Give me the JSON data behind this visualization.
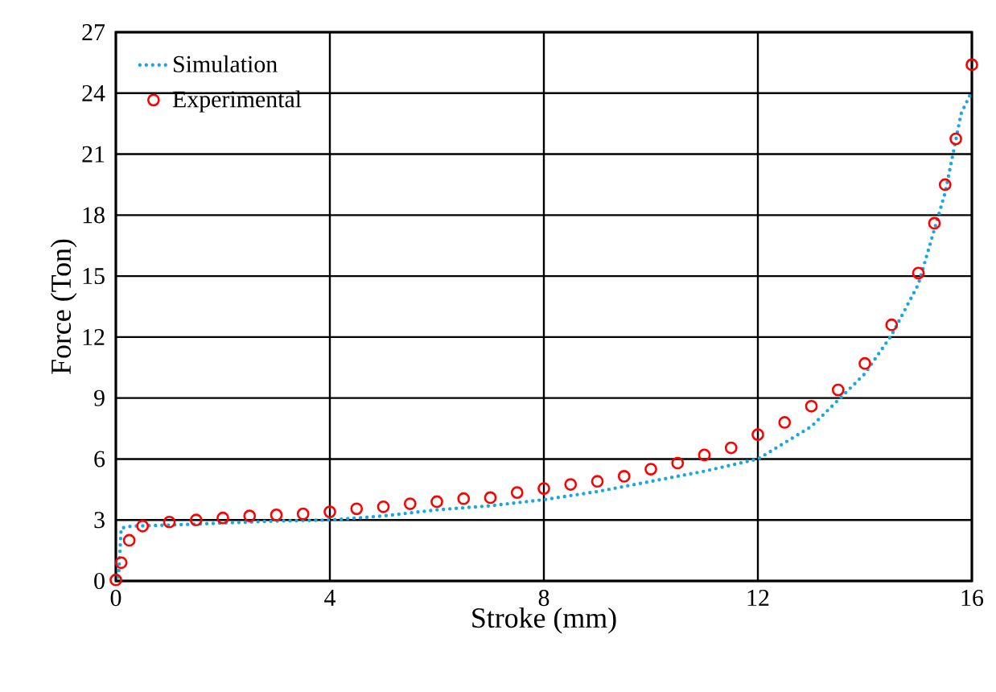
{
  "chart_data": {
    "type": "line",
    "xlabel": "Stroke (mm)",
    "ylabel": "Force (Ton)",
    "xlim": [
      0,
      16
    ],
    "xticks": [
      0,
      4,
      8,
      12,
      16
    ],
    "ylim": [
      0,
      27
    ],
    "yticks": [
      0,
      3,
      6,
      9,
      12,
      15,
      18,
      21,
      24,
      27
    ],
    "grid": true,
    "legend": "top left",
    "series": [
      {
        "name": "Simulation",
        "color": "#1aa7e0",
        "line_style": "dotted",
        "marker": "none",
        "x": [
          0.05,
          0.1,
          0.3,
          1,
          2,
          3,
          4,
          5,
          6,
          7,
          8,
          9,
          10,
          11,
          12,
          13,
          13.5,
          14,
          14.5,
          15,
          15.5,
          15.8,
          16
        ],
        "values": [
          0.2,
          2.6,
          2.7,
          2.75,
          2.85,
          2.95,
          3.0,
          3.2,
          3.5,
          3.7,
          4.0,
          4.4,
          4.9,
          5.4,
          6.0,
          7.6,
          8.9,
          10.2,
          12.1,
          14.6,
          19.1,
          23.0,
          24.1
        ]
      },
      {
        "name": "Experimental",
        "type": "scatter",
        "color": "#ff0000",
        "marker": "circle",
        "x": [
          0,
          0.1,
          0.25,
          0.5,
          1,
          1.5,
          2,
          2.5,
          3,
          3.5,
          4,
          4.5,
          5,
          5.5,
          6,
          6.5,
          7,
          7.5,
          8,
          8.5,
          9,
          9.5,
          10,
          10.5,
          11,
          11.5,
          12,
          12.5,
          13,
          13.5,
          14,
          14.5,
          15,
          15.3,
          15.5,
          15.7,
          16
        ],
        "values": [
          0.05,
          0.9,
          2.0,
          2.7,
          2.9,
          3.0,
          3.1,
          3.2,
          3.25,
          3.3,
          3.4,
          3.55,
          3.65,
          3.8,
          3.9,
          4.05,
          4.1,
          4.35,
          4.55,
          4.75,
          4.9,
          5.15,
          5.5,
          5.8,
          6.2,
          6.55,
          7.2,
          7.8,
          8.6,
          9.4,
          10.7,
          12.6,
          15.15,
          17.6,
          19.5,
          21.75,
          25.4
        ]
      }
    ]
  }
}
